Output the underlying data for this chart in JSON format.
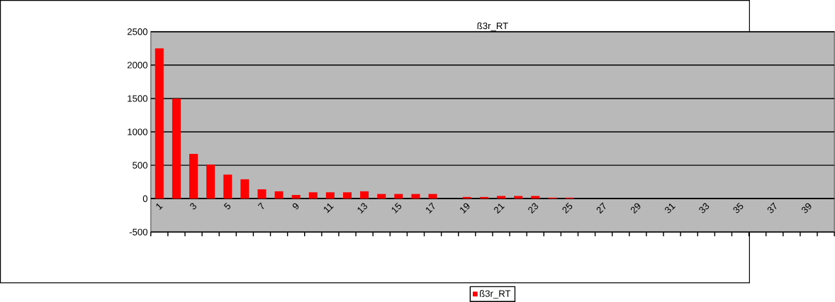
{
  "chart_data": {
    "type": "bar",
    "title": "ß3r_RT",
    "categories": [
      "1",
      null,
      "3",
      null,
      "5",
      null,
      "7",
      null,
      "9",
      null,
      "11",
      null,
      "13",
      null,
      "15",
      null,
      "17",
      null,
      "19",
      null,
      "21",
      null,
      "23",
      null,
      "25",
      null,
      "27",
      null,
      "29",
      null,
      "31",
      null,
      "33",
      null,
      "35",
      null,
      "37",
      null,
      "39",
      null
    ],
    "series": [
      {
        "name": "ß3r_RT",
        "color": "#ff0000",
        "values": [
          2250,
          1500,
          670,
          510,
          360,
          290,
          140,
          110,
          55,
          95,
          95,
          95,
          110,
          70,
          70,
          70,
          70,
          0,
          25,
          25,
          40,
          40,
          40,
          15,
          15,
          0,
          0,
          0,
          0,
          0,
          0,
          0,
          0,
          0,
          0,
          0,
          0,
          0,
          0,
          0
        ]
      }
    ],
    "ylim": [
      -500,
      2500
    ],
    "yticks": [
      -500,
      0,
      500,
      1000,
      1500,
      2000,
      2500
    ],
    "grid": "y",
    "legend": "bottom"
  }
}
